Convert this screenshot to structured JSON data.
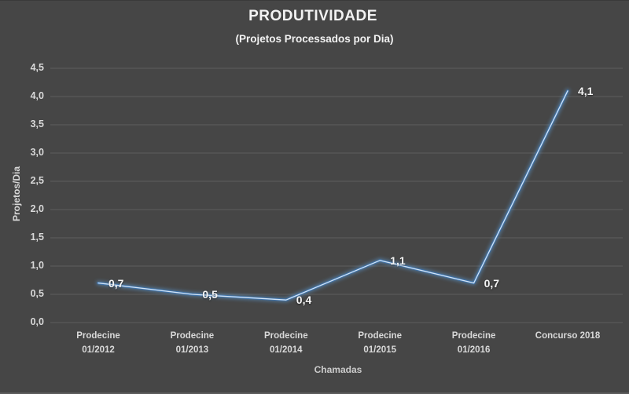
{
  "colors": {
    "background": "#464646",
    "title_text": "#f2f2f2",
    "axis_text": "#d9d9d9",
    "muted_text": "#cccccc",
    "data_label_text": "#f5f5f5",
    "gridline": "#5e5e5e",
    "line": "#3f74ad",
    "line_core": "#d2e4f6",
    "line_glow": "#5b9bd5"
  },
  "chart_data": {
    "type": "line",
    "title": "PRODUTIVIDADE",
    "subtitle": "(Projetos Processados por Dia)",
    "xlabel": "Chamadas",
    "ylabel": "Projetos/Dia",
    "categories": [
      "Prodecine 01/2012",
      "Prodecine 01/2013",
      "Prodecine 01/2014",
      "Prodecine 01/2015",
      "Prodecine 01/2016",
      "Concurso 2018"
    ],
    "values": [
      0.7,
      0.5,
      0.4,
      1.1,
      0.7,
      4.1
    ],
    "value_labels": [
      "0,7",
      "0,5",
      "0,4",
      "1,1",
      "0,7",
      "4,1"
    ],
    "ylim": [
      0,
      4.5
    ],
    "ytick_step": 0.5,
    "ytick_labels": [
      "0,0",
      "0,5",
      "1,0",
      "1,5",
      "2,0",
      "2,5",
      "3,0",
      "3,5",
      "4,0",
      "4,5"
    ],
    "grid": true,
    "legend": "none",
    "markers": "none"
  }
}
